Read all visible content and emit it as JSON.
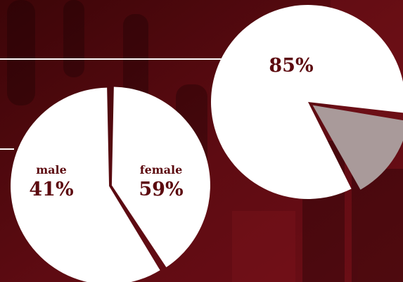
{
  "colors": {
    "background": "#5a0a10",
    "background_dark": "#2a0306",
    "slice_primary": "#ffffff",
    "slice_muted": "#a99a9a",
    "label_text": "#5c0a0f"
  },
  "chart_data": [
    {
      "type": "pie",
      "categories": [
        "male",
        "female"
      ],
      "values": [
        41,
        59
      ],
      "labels": [
        "41%",
        "59%"
      ],
      "title": "",
      "legend": "none"
    },
    {
      "type": "pie",
      "categories": [
        "",
        ""
      ],
      "values": [
        85,
        15
      ],
      "labels": [
        "85%",
        ""
      ],
      "title": "",
      "legend": "none"
    }
  ]
}
